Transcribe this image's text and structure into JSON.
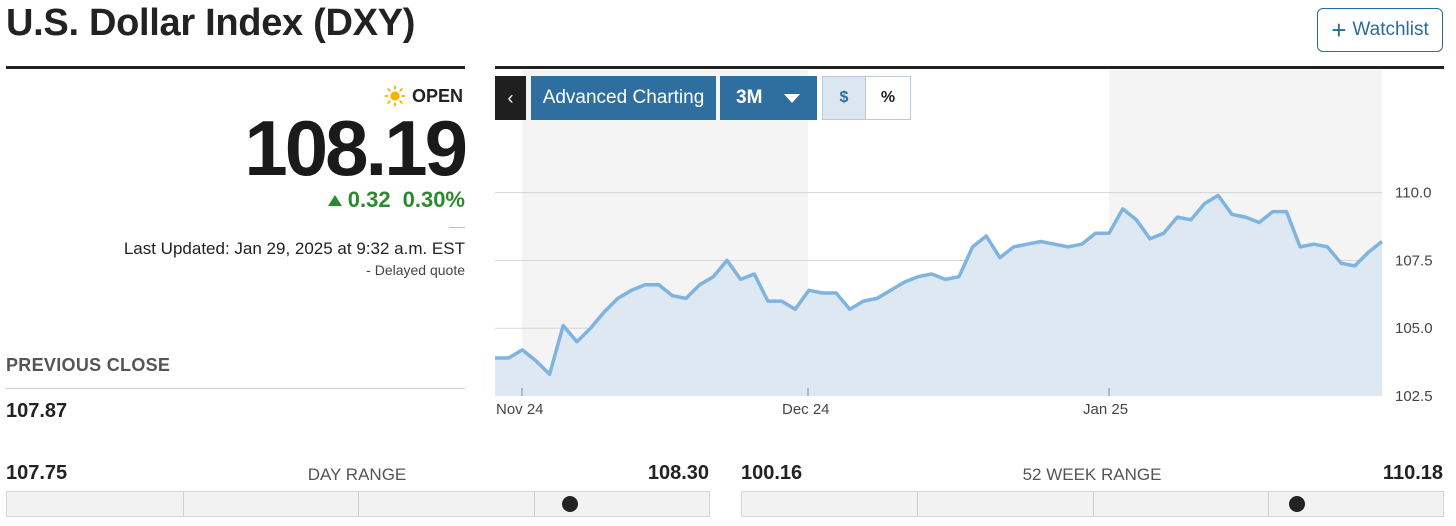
{
  "header": {
    "title": "U.S. Dollar Index (DXY)",
    "watchlist_label": "Watchlist"
  },
  "quote": {
    "status": "OPEN",
    "price": "108.19",
    "change": "0.32",
    "change_percent": "0.30%",
    "last_updated": "Last Updated: Jan 29, 2025 at 9:32 a.m. EST",
    "delayed": "-  Delayed quote",
    "previous_close_label": "PREVIOUS CLOSE",
    "previous_close": "107.87"
  },
  "colors": {
    "positive": "#2b8a2e",
    "accent": "#2e6fa0",
    "line": "#7fb3e0",
    "area": "#dde8f2"
  },
  "chart_toolbar": {
    "back_icon": "chevron-left-icon",
    "advanced_label": "Advanced Charting",
    "period": "3M",
    "dollar_label": "$",
    "percent_label": "%"
  },
  "chart_data": {
    "type": "area",
    "ylim": [
      102.5,
      111.5
    ],
    "y_ticks": [
      "110.0",
      "107.5",
      "105.0",
      "102.5"
    ],
    "x_labels": [
      "Nov 24",
      "Dec 24",
      "Jan 25"
    ],
    "grid": true,
    "values": [
      103.9,
      103.9,
      104.2,
      103.8,
      103.3,
      105.1,
      104.5,
      105.0,
      105.6,
      106.1,
      106.4,
      106.6,
      106.6,
      106.2,
      106.1,
      106.6,
      106.9,
      107.5,
      106.8,
      107.0,
      106.0,
      106.0,
      105.7,
      106.4,
      106.3,
      106.3,
      105.7,
      106.0,
      106.1,
      106.4,
      106.7,
      106.9,
      107.0,
      106.8,
      106.9,
      108.0,
      108.4,
      107.6,
      108.0,
      108.1,
      108.2,
      108.1,
      108.0,
      108.1,
      108.5,
      108.5,
      109.4,
      109.0,
      108.3,
      108.5,
      109.1,
      109.0,
      109.6,
      109.9,
      109.2,
      109.1,
      108.9,
      109.3,
      109.3,
      108.0,
      108.1,
      108.0,
      107.4,
      107.3,
      107.8,
      108.2
    ]
  },
  "day_range": {
    "low": "107.75",
    "label": "DAY RANGE",
    "high": "108.30",
    "position": 0.8
  },
  "week52_range": {
    "low": "100.16",
    "label": "52 WEEK RANGE",
    "high": "110.18",
    "position": 0.79
  }
}
